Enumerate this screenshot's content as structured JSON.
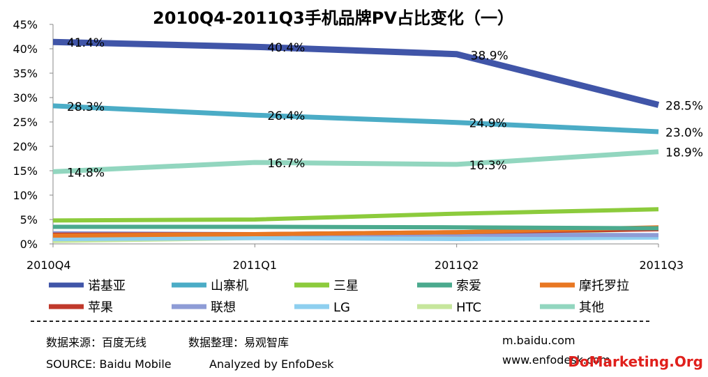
{
  "chart_data": {
    "type": "line",
    "title": "2010Q4-2011Q3手机品牌PV占比变化（一）",
    "categories": [
      "2010Q4",
      "2011Q1",
      "2011Q2",
      "2011Q3"
    ],
    "ylim": [
      0,
      45
    ],
    "yticks": [
      "0%",
      "5%",
      "10%",
      "15%",
      "20%",
      "25%",
      "30%",
      "35%",
      "40%",
      "45%"
    ],
    "grid": false,
    "legend_position": "bottom",
    "series": [
      {
        "name": "诺基亚",
        "color": "#4055A8",
        "values": [
          41.4,
          40.4,
          38.9,
          28.5
        ],
        "labels": [
          "41.4%",
          "40.4%",
          "38.9%",
          "28.5%"
        ]
      },
      {
        "name": "山寨机",
        "color": "#4BACC6",
        "values": [
          28.3,
          26.4,
          24.9,
          23.0
        ],
        "labels": [
          "28.3%",
          "26.4%",
          "24.9%",
          "23.0%"
        ]
      },
      {
        "name": "三星",
        "color": "#8CCB3C",
        "values": [
          4.8,
          5.0,
          6.2,
          7.1
        ]
      },
      {
        "name": "索爱",
        "color": "#4BAA8E",
        "values": [
          3.5,
          3.5,
          3.4,
          3.2
        ]
      },
      {
        "name": "摩托罗拉",
        "color": "#E87722",
        "values": [
          1.7,
          2.0,
          2.4,
          3.4
        ]
      },
      {
        "name": "苹果",
        "color": "#C0392B",
        "values": [
          1.9,
          2.0,
          2.4,
          3.0
        ]
      },
      {
        "name": "联想",
        "color": "#8E9CD6",
        "values": [
          2.2,
          2.0,
          1.9,
          1.8
        ]
      },
      {
        "name": "LG",
        "color": "#8ECFEF",
        "values": [
          1.0,
          1.2,
          1.0,
          1.3
        ]
      },
      {
        "name": "HTC",
        "color": "#C6E69C",
        "values": [
          0.6,
          1.2,
          1.8,
          3.1
        ]
      },
      {
        "name": "其他",
        "color": "#92D6BF",
        "values": [
          14.8,
          16.7,
          16.3,
          18.9
        ],
        "labels": [
          "14.8%",
          "16.7%",
          "16.3%",
          "18.9%"
        ]
      }
    ]
  },
  "footer": {
    "source_cn": "数据来源：百度无线",
    "analysis_cn": "数据整理：易观智库",
    "source_en": "SOURCE: Baidu Mobile",
    "analysis_en": "Analyzed by EnfoDesk",
    "url1": "m.baidu.com",
    "url2": "www.enfodesk.com"
  },
  "watermark": {
    "text": "DoMarketing.Org",
    "color": "#E0201C"
  }
}
